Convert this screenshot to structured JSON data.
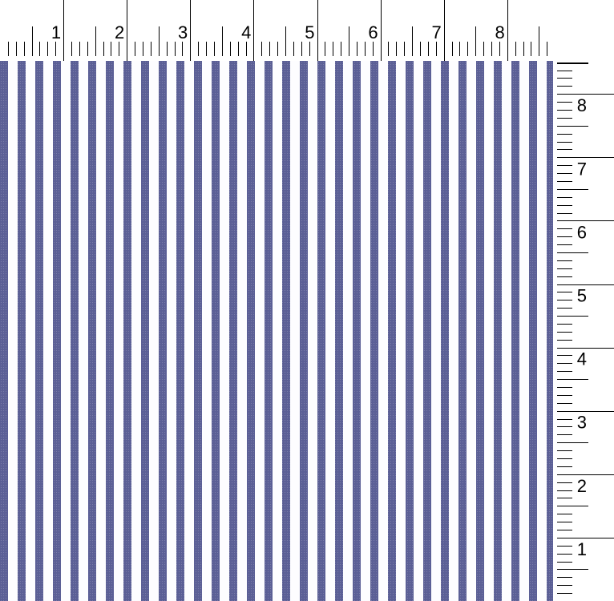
{
  "swatch": {
    "pattern": "vertical stripes",
    "stripe_color": "#5b5f96",
    "ground_color": "#fdfdff"
  },
  "top_ruler": {
    "labels": [
      "1",
      "2",
      "3",
      "4",
      "5",
      "6",
      "7",
      "8"
    ]
  },
  "right_ruler": {
    "labels": [
      "8",
      "7",
      "6",
      "5",
      "4",
      "3",
      "2",
      "1"
    ]
  }
}
